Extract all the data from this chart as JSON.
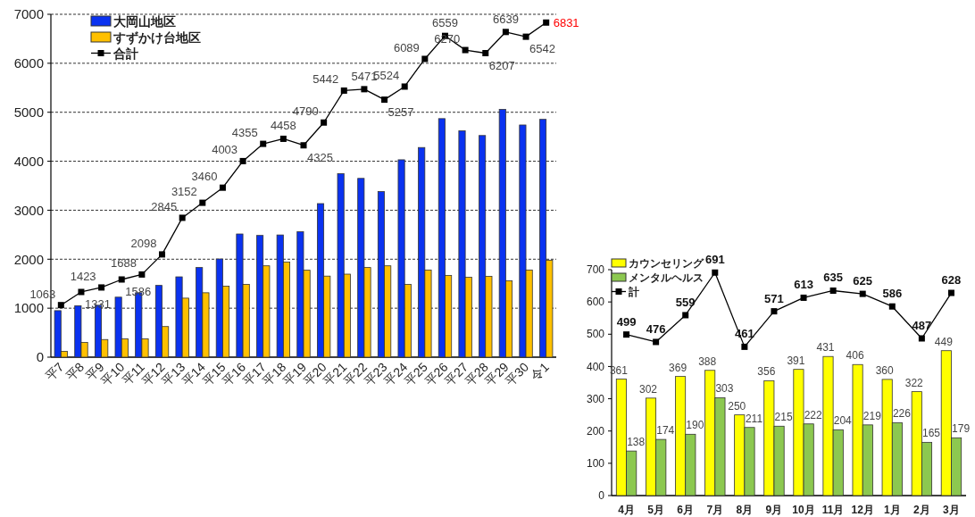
{
  "chart_data": [
    {
      "type": "bar",
      "categories": [
        "平7",
        "平8",
        "平9",
        "平10",
        "平11",
        "平12",
        "平13",
        "平14",
        "平15",
        "平16",
        "平17",
        "平18",
        "平19",
        "平20",
        "平21",
        "平22",
        "平23",
        "平24",
        "平25",
        "平26",
        "平27",
        "平28",
        "平29",
        "平30",
        "令1"
      ],
      "series": [
        {
          "name": "大岡山地区",
          "color": "#0a32f0",
          "values": [
            950,
            1050,
            1060,
            1225,
            1315,
            1465,
            1640,
            1830,
            2005,
            2515,
            2485,
            2495,
            2560,
            3135,
            3745,
            3650,
            3380,
            4030,
            4280,
            4870,
            4620,
            4525,
            5060,
            4740,
            4855
          ]
        },
        {
          "name": "すずかけ台地区",
          "color": "#ffc000",
          "values": [
            120,
            300,
            360,
            375,
            375,
            625,
            1205,
            1315,
            1450,
            1485,
            1865,
            1940,
            1775,
            1655,
            1695,
            1830,
            1865,
            1485,
            1780,
            1670,
            1630,
            1650,
            1560,
            1780,
            1980
          ]
        },
        {
          "name": "合計",
          "type": "line",
          "color": "#000000",
          "marker": "square",
          "values": [
            1063,
            1331,
            1423,
            1586,
            1688,
            2098,
            2845,
            3152,
            3460,
            4003,
            4355,
            4458,
            4325,
            4790,
            5442,
            5471,
            5257,
            5524,
            6089,
            6559,
            6270,
            6207,
            6639,
            6542,
            6831
          ],
          "value_labels": [
            "1063",
            "1331",
            "1423",
            "1586",
            "1688",
            "2098",
            "2845",
            "3152",
            "3460",
            "4003",
            "4355",
            "4458",
            "4325",
            "4790",
            "5442",
            "5471",
            "5257",
            "5524",
            "6089",
            "6559",
            "6270",
            "6207",
            "6639",
            "6542",
            null
          ]
        }
      ],
      "ylim": [
        0,
        7000
      ],
      "yticks": [
        0,
        1000,
        2000,
        3000,
        4000,
        5000,
        6000,
        7000
      ],
      "grid": "y",
      "legend": "top left",
      "annotations": [
        {
          "text": "6831",
          "x": "令1",
          "y": 6831
        }
      ]
    },
    {
      "type": "bar",
      "categories": [
        "4月",
        "5月",
        "6月",
        "7月",
        "8月",
        "9月",
        "10月",
        "11月",
        "12月",
        "1月",
        "2月",
        "3月"
      ],
      "series": [
        {
          "name": "カウンセリング",
          "color": "#ffff00",
          "values": [
            361,
            302,
            369,
            388,
            250,
            356,
            391,
            431,
            406,
            360,
            322,
            449
          ]
        },
        {
          "name": "メンタルヘルス",
          "color": "#8cc850",
          "values": [
            138,
            174,
            190,
            303,
            211,
            215,
            222,
            204,
            219,
            226,
            165,
            179
          ]
        },
        {
          "name": "計",
          "type": "line",
          "color": "#000000",
          "marker": "square",
          "values": [
            499,
            476,
            559,
            691,
            461,
            571,
            613,
            635,
            625,
            586,
            487,
            628
          ]
        }
      ],
      "ylim": [
        0,
        700
      ],
      "yticks": [
        0,
        100,
        200,
        300,
        400,
        500,
        600,
        700
      ],
      "legend": "top left",
      "data_labels": true
    }
  ]
}
